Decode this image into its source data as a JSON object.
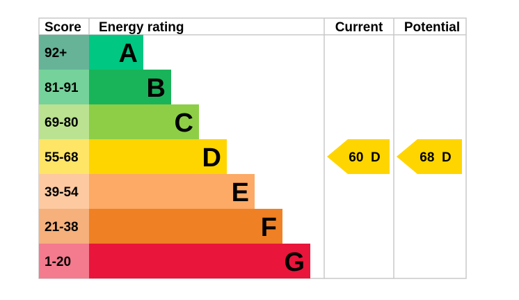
{
  "headers": {
    "score": "Score",
    "rating": "Energy rating",
    "current": "Current",
    "potential": "Potential"
  },
  "chart_data": {
    "type": "bar",
    "bands": [
      {
        "letter": "A",
        "score": "92+",
        "color": "#008054",
        "score_bg": "#66b398",
        "bar_color": "#00c781"
      },
      {
        "letter": "B",
        "score": "81-91",
        "color": "#19b459",
        "score_bg": "#75d29b",
        "bar_color": "#19b459"
      },
      {
        "letter": "C",
        "score": "69-80",
        "color": "#8dce46",
        "score_bg": "#bbe290",
        "bar_color": "#8dce46"
      },
      {
        "letter": "D",
        "score": "55-68",
        "color": "#ffd500",
        "score_bg": "#ffe566",
        "bar_color": "#ffd500"
      },
      {
        "letter": "E",
        "score": "39-54",
        "color": "#fcaa65",
        "score_bg": "#fdc9a0",
        "bar_color": "#fcaa65"
      },
      {
        "letter": "F",
        "score": "21-38",
        "color": "#ef8023",
        "score_bg": "#f5b07b",
        "bar_color": "#ef8023"
      },
      {
        "letter": "G",
        "score": "1-20",
        "color": "#e9153b",
        "score_bg": "#f47a8e",
        "bar_color": "#e9153b"
      }
    ],
    "current": {
      "value": 60,
      "band": "D",
      "label": "60  D",
      "color": "#ffd500"
    },
    "potential": {
      "value": 68,
      "band": "D",
      "label": "68  D",
      "color": "#ffd500"
    }
  }
}
